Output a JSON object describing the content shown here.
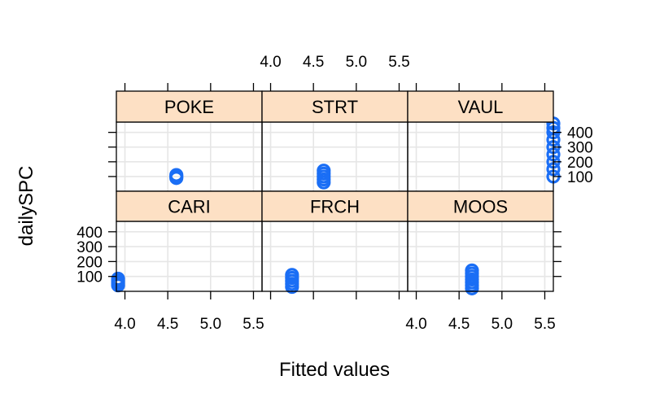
{
  "chart_data": {
    "type": "scatter",
    "xlabel": "Fitted values",
    "ylabel": "dailySPC",
    "xlim": [
      3.9,
      5.6
    ],
    "ylim": [
      0,
      470
    ],
    "xticks": [
      "4.0",
      "4.5",
      "5.0",
      "5.5"
    ],
    "yticks": [
      "100",
      "200",
      "300",
      "400"
    ],
    "grid": true,
    "point_color": "#1a6ef5",
    "strip_color": "#fde0c4",
    "panels": [
      {
        "name": "POKE",
        "points": [
          {
            "x": 4.6,
            "y": 90
          },
          {
            "x": 4.6,
            "y": 100
          },
          {
            "x": 4.6,
            "y": 110
          }
        ]
      },
      {
        "name": "STRT",
        "points": [
          {
            "x": 4.62,
            "y": 60
          },
          {
            "x": 4.62,
            "y": 80
          },
          {
            "x": 4.62,
            "y": 100
          },
          {
            "x": 4.62,
            "y": 120
          },
          {
            "x": 4.62,
            "y": 140
          }
        ]
      },
      {
        "name": "VAUL",
        "points": [
          {
            "x": 5.6,
            "y": 100
          },
          {
            "x": 5.6,
            "y": 150
          },
          {
            "x": 5.6,
            "y": 200
          },
          {
            "x": 5.6,
            "y": 250
          },
          {
            "x": 5.6,
            "y": 300
          },
          {
            "x": 5.6,
            "y": 350
          },
          {
            "x": 5.6,
            "y": 400
          },
          {
            "x": 5.6,
            "y": 430
          },
          {
            "x": 5.6,
            "y": 460
          }
        ]
      },
      {
        "name": "CARI",
        "points": [
          {
            "x": 3.92,
            "y": 40
          },
          {
            "x": 3.92,
            "y": 55
          },
          {
            "x": 3.92,
            "y": 70
          },
          {
            "x": 3.92,
            "y": 85
          }
        ]
      },
      {
        "name": "FRCH",
        "points": [
          {
            "x": 4.25,
            "y": 30
          },
          {
            "x": 4.25,
            "y": 50
          },
          {
            "x": 4.25,
            "y": 70
          },
          {
            "x": 4.25,
            "y": 90
          },
          {
            "x": 4.25,
            "y": 110
          }
        ]
      },
      {
        "name": "MOOS",
        "points": [
          {
            "x": 4.65,
            "y": 20
          },
          {
            "x": 4.65,
            "y": 40
          },
          {
            "x": 4.65,
            "y": 60
          },
          {
            "x": 4.65,
            "y": 80
          },
          {
            "x": 4.65,
            "y": 100
          },
          {
            "x": 4.65,
            "y": 120
          },
          {
            "x": 4.65,
            "y": 140
          }
        ]
      }
    ]
  }
}
